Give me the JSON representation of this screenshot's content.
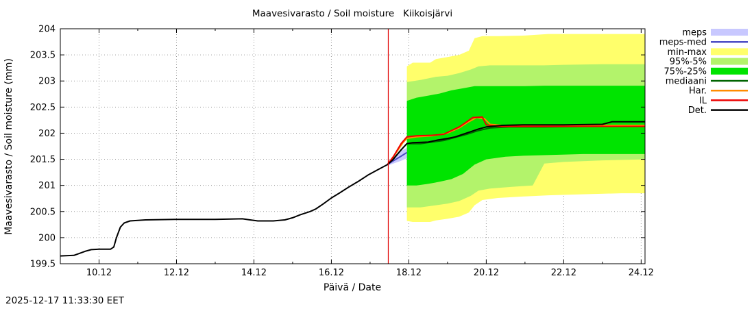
{
  "chart_data": {
    "type": "line",
    "title": "Maavesivarasto / Soil moisture   Kiikoisjärvi",
    "xlabel": "Päivä / Date",
    "ylabel": "Maavesivarasto / Soil moisture (mm)",
    "timestamp": "2025-12-17 11:33:30 EET",
    "x_unit_note": "day of December 2025, ticks formatted day.month",
    "xlim": [
      9.0,
      24.1
    ],
    "ylim": [
      199.5,
      204
    ],
    "grid": true,
    "legend_position": "outside-right",
    "x_ticks": [
      {
        "value": 10,
        "label": "10.12"
      },
      {
        "value": 12,
        "label": "12.12"
      },
      {
        "value": 14,
        "label": "14.12"
      },
      {
        "value": 16,
        "label": "16.12"
      },
      {
        "value": 18,
        "label": "18.12"
      },
      {
        "value": 20,
        "label": "20.12"
      },
      {
        "value": 22,
        "label": "22.12"
      },
      {
        "value": 24,
        "label": "24.12"
      }
    ],
    "x_minor_ticks": [
      9,
      11,
      13,
      15,
      17,
      19,
      21,
      23
    ],
    "y_ticks": [
      {
        "value": 199.5,
        "label": "199.5"
      },
      {
        "value": 200,
        "label": "200"
      },
      {
        "value": 200.5,
        "label": "200.5"
      },
      {
        "value": 201,
        "label": "201"
      },
      {
        "value": 201.5,
        "label": "201.5"
      },
      {
        "value": 202,
        "label": "202"
      },
      {
        "value": 202.5,
        "label": "202.5"
      },
      {
        "value": 203,
        "label": "203"
      },
      {
        "value": 203.5,
        "label": "203.5"
      },
      {
        "value": 204,
        "label": "204"
      }
    ],
    "current_time_line": {
      "x": 17.47,
      "color": "#e00000"
    },
    "bands": [
      {
        "name": "min-max",
        "color": "#ffff6b",
        "points": [
          [
            17.95,
            200.32,
            203.28
          ],
          [
            18.1,
            200.3,
            203.35
          ],
          [
            18.55,
            200.3,
            203.35
          ],
          [
            18.7,
            200.33,
            203.42
          ],
          [
            19.0,
            200.36,
            203.46
          ],
          [
            19.3,
            200.4,
            203.5
          ],
          [
            19.55,
            200.48,
            203.58
          ],
          [
            19.7,
            200.62,
            203.82
          ],
          [
            19.9,
            200.72,
            203.86
          ],
          [
            20.3,
            200.76,
            203.86
          ],
          [
            21.0,
            200.79,
            203.87
          ],
          [
            21.6,
            200.81,
            203.9
          ],
          [
            22.5,
            200.83,
            203.9
          ],
          [
            23.5,
            200.85,
            203.9
          ],
          [
            24.1,
            200.85,
            203.9
          ]
        ]
      },
      {
        "name": "95%-5%",
        "color": "#b3f36b",
        "points": [
          [
            17.95,
            200.58,
            202.98
          ],
          [
            18.3,
            200.58,
            203.02
          ],
          [
            18.7,
            200.62,
            203.08
          ],
          [
            19.0,
            200.65,
            203.1
          ],
          [
            19.3,
            200.7,
            203.15
          ],
          [
            19.6,
            200.8,
            203.22
          ],
          [
            19.8,
            200.9,
            203.28
          ],
          [
            20.1,
            200.94,
            203.3
          ],
          [
            20.6,
            200.97,
            203.3
          ],
          [
            21.2,
            201.0,
            203.3
          ],
          [
            21.5,
            201.42,
            203.3
          ],
          [
            22.0,
            201.45,
            203.31
          ],
          [
            23.0,
            201.48,
            203.32
          ],
          [
            24.1,
            201.5,
            203.32
          ]
        ]
      },
      {
        "name": "75%-25%",
        "color": "#00e400",
        "points": [
          [
            17.95,
            201.0,
            202.62
          ],
          [
            18.2,
            201.0,
            202.68
          ],
          [
            18.5,
            201.03,
            202.72
          ],
          [
            18.8,
            201.07,
            202.76
          ],
          [
            19.1,
            201.12,
            202.82
          ],
          [
            19.4,
            201.22,
            202.86
          ],
          [
            19.7,
            201.4,
            202.9
          ],
          [
            20.0,
            201.5,
            202.9
          ],
          [
            20.5,
            201.55,
            202.9
          ],
          [
            21.0,
            201.57,
            202.9
          ],
          [
            21.5,
            201.58,
            202.91
          ],
          [
            22.5,
            201.6,
            202.91
          ],
          [
            24.1,
            201.6,
            202.91
          ]
        ]
      },
      {
        "name": "meps",
        "color": "#c8c8ff",
        "points": [
          [
            17.45,
            201.38,
            201.42
          ],
          [
            17.6,
            201.42,
            201.55
          ],
          [
            17.8,
            201.47,
            201.66
          ],
          [
            17.95,
            201.52,
            201.72
          ]
        ]
      }
    ],
    "lines": [
      {
        "name": "meps-med",
        "color": "#4e4ec4",
        "width": 2,
        "points": [
          [
            17.45,
            201.4
          ],
          [
            17.6,
            201.47
          ],
          [
            17.8,
            201.56
          ],
          [
            17.95,
            201.63
          ]
        ]
      },
      {
        "name": "mediaani",
        "color": "#006400",
        "width": 2,
        "points": [
          [
            17.45,
            201.4
          ],
          [
            17.65,
            201.55
          ],
          [
            17.85,
            201.72
          ],
          [
            17.95,
            201.8
          ],
          [
            18.3,
            201.8
          ],
          [
            18.6,
            201.83
          ],
          [
            18.9,
            201.86
          ],
          [
            19.2,
            201.92
          ],
          [
            19.5,
            201.98
          ],
          [
            19.8,
            202.05
          ],
          [
            20.1,
            202.1
          ],
          [
            20.6,
            202.12
          ],
          [
            21.5,
            202.12
          ],
          [
            22.5,
            202.13
          ],
          [
            24.1,
            202.13
          ]
        ]
      },
      {
        "name": "Har.",
        "color": "#ff8c00",
        "width": 2,
        "points": [
          [
            17.45,
            201.4
          ],
          [
            17.65,
            201.6
          ],
          [
            17.85,
            201.82
          ],
          [
            17.95,
            201.9
          ],
          [
            18.2,
            201.93
          ],
          [
            18.6,
            201.95
          ],
          [
            19.0,
            202.0
          ],
          [
            19.3,
            202.1
          ],
          [
            19.55,
            202.22
          ],
          [
            19.75,
            202.3
          ],
          [
            19.95,
            202.28
          ],
          [
            20.1,
            202.17
          ],
          [
            20.4,
            202.15
          ],
          [
            21.0,
            202.15
          ],
          [
            22.0,
            202.15
          ],
          [
            23.0,
            202.15
          ],
          [
            24.1,
            202.15
          ]
        ]
      },
      {
        "name": "IL",
        "color": "#ee0000",
        "width": 2,
        "points": [
          [
            17.45,
            201.4
          ],
          [
            17.6,
            201.55
          ],
          [
            17.8,
            201.8
          ],
          [
            17.95,
            201.93
          ],
          [
            18.2,
            201.95
          ],
          [
            18.6,
            201.96
          ],
          [
            18.9,
            201.98
          ],
          [
            19.1,
            202.05
          ],
          [
            19.3,
            202.12
          ],
          [
            19.5,
            202.22
          ],
          [
            19.65,
            202.3
          ],
          [
            19.9,
            202.31
          ],
          [
            20.0,
            202.16
          ],
          [
            20.3,
            202.13
          ],
          [
            21.0,
            202.13
          ],
          [
            22.0,
            202.13
          ],
          [
            23.0,
            202.13
          ],
          [
            24.1,
            202.13
          ]
        ]
      },
      {
        "name": "Det.",
        "color": "#000000",
        "width": 2,
        "points": [
          [
            9.0,
            199.65
          ],
          [
            9.35,
            199.66
          ],
          [
            9.5,
            199.7
          ],
          [
            9.65,
            199.74
          ],
          [
            9.8,
            199.77
          ],
          [
            10.0,
            199.78
          ],
          [
            10.3,
            199.78
          ],
          [
            10.38,
            199.82
          ],
          [
            10.45,
            200.0
          ],
          [
            10.55,
            200.2
          ],
          [
            10.65,
            200.28
          ],
          [
            10.8,
            200.32
          ],
          [
            11.2,
            200.34
          ],
          [
            12.0,
            200.35
          ],
          [
            13.0,
            200.35
          ],
          [
            13.7,
            200.36
          ],
          [
            13.9,
            200.34
          ],
          [
            14.1,
            200.32
          ],
          [
            14.5,
            200.32
          ],
          [
            14.8,
            200.34
          ],
          [
            15.0,
            200.38
          ],
          [
            15.2,
            200.44
          ],
          [
            15.45,
            200.5
          ],
          [
            15.6,
            200.55
          ],
          [
            15.8,
            200.65
          ],
          [
            16.0,
            200.76
          ],
          [
            16.2,
            200.85
          ],
          [
            16.45,
            200.97
          ],
          [
            16.7,
            201.08
          ],
          [
            16.95,
            201.2
          ],
          [
            17.2,
            201.3
          ],
          [
            17.45,
            201.4
          ],
          [
            17.6,
            201.5
          ],
          [
            17.8,
            201.68
          ],
          [
            17.95,
            201.8
          ],
          [
            18.1,
            201.82
          ],
          [
            18.5,
            201.83
          ],
          [
            18.75,
            201.87
          ],
          [
            19.0,
            201.9
          ],
          [
            19.2,
            201.93
          ],
          [
            19.4,
            201.98
          ],
          [
            19.6,
            202.03
          ],
          [
            19.8,
            202.08
          ],
          [
            20.0,
            202.12
          ],
          [
            20.4,
            202.15
          ],
          [
            21.0,
            202.16
          ],
          [
            22.0,
            202.16
          ],
          [
            23.0,
            202.17
          ],
          [
            23.25,
            202.22
          ],
          [
            24.1,
            202.22
          ]
        ]
      }
    ],
    "legend": [
      {
        "label": "meps",
        "type": "band",
        "color": "#c8c8ff"
      },
      {
        "label": "meps-med",
        "type": "line",
        "color": "#4e4ec4"
      },
      {
        "label": "min-max",
        "type": "band",
        "color": "#ffff6b"
      },
      {
        "label": "95%-5%",
        "type": "band",
        "color": "#b3f36b"
      },
      {
        "label": "75%-25%",
        "type": "band",
        "color": "#00e400"
      },
      {
        "label": "mediaani",
        "type": "line",
        "color": "#006400"
      },
      {
        "label": "Har.",
        "type": "line",
        "color": "#ff8c00"
      },
      {
        "label": "IL",
        "type": "line",
        "color": "#ee0000"
      },
      {
        "label": "Det.",
        "type": "line",
        "color": "#000000"
      }
    ]
  }
}
